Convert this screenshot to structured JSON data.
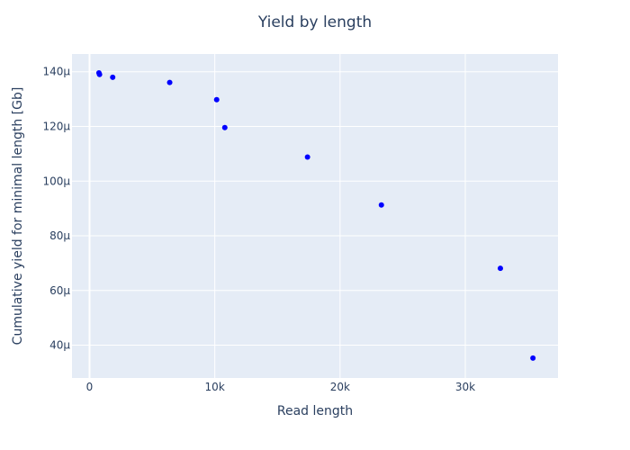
{
  "chart_data": {
    "type": "scatter",
    "title": "Yield by length",
    "xlabel": "Read length",
    "ylabel": "Cumulative yield for minimal length [Gb]",
    "xlim": [
      -1400,
      37400
    ],
    "ylim": [
      28,
      146.5
    ],
    "x_ticks": [
      {
        "value": 0,
        "label": "0"
      },
      {
        "value": 10000,
        "label": "10k"
      },
      {
        "value": 20000,
        "label": "20k"
      },
      {
        "value": 30000,
        "label": "30k"
      }
    ],
    "y_ticks": [
      {
        "value": 40,
        "label": "40μ"
      },
      {
        "value": 60,
        "label": "60μ"
      },
      {
        "value": 80,
        "label": "80μ"
      },
      {
        "value": 100,
        "label": "100μ"
      },
      {
        "value": 120,
        "label": "120μ"
      },
      {
        "value": 140,
        "label": "140μ"
      }
    ],
    "grid": true,
    "marker_color": "#0000ff",
    "plot_bg": "#e5ecf6",
    "grid_color": "#ffffff",
    "text_color": "#2a3f5f",
    "series": [
      {
        "points": [
          {
            "x": 750,
            "y": 139.6
          },
          {
            "x": 800,
            "y": 139.0
          },
          {
            "x": 1850,
            "y": 138.0
          },
          {
            "x": 6400,
            "y": 136.1
          },
          {
            "x": 10150,
            "y": 129.8
          },
          {
            "x": 10800,
            "y": 119.6
          },
          {
            "x": 17400,
            "y": 108.8
          },
          {
            "x": 23300,
            "y": 91.3
          },
          {
            "x": 32800,
            "y": 68.1
          },
          {
            "x": 35400,
            "y": 35.3
          }
        ]
      }
    ]
  }
}
